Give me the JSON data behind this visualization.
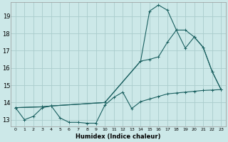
{
  "xlabel": "Humidex (Indice chaleur)",
  "background_color": "#cce8e8",
  "grid_color": "#aacccc",
  "line_color": "#1a6060",
  "xlim": [
    -0.5,
    23.5
  ],
  "ylim": [
    12.6,
    19.8
  ],
  "xticks": [
    0,
    1,
    2,
    3,
    4,
    5,
    6,
    7,
    8,
    9,
    10,
    11,
    12,
    13,
    14,
    15,
    16,
    17,
    18,
    19,
    20,
    21,
    22,
    23
  ],
  "yticks": [
    13,
    14,
    15,
    16,
    17,
    18,
    19
  ],
  "line1_x": [
    0,
    1,
    2,
    3,
    4,
    5,
    6,
    7,
    8,
    9,
    10,
    11,
    12,
    13,
    14,
    15,
    16,
    17,
    18,
    19,
    20,
    21,
    22,
    23
  ],
  "line1_y": [
    13.7,
    13.0,
    13.2,
    13.7,
    13.8,
    13.1,
    12.85,
    12.85,
    12.8,
    12.8,
    13.85,
    14.3,
    14.6,
    13.65,
    14.05,
    14.2,
    14.35,
    14.5,
    14.55,
    14.6,
    14.65,
    14.7,
    14.72,
    14.75
  ],
  "line2_x": [
    0,
    3,
    4,
    10,
    14,
    15,
    16,
    17,
    18,
    19,
    20,
    21,
    22,
    23
  ],
  "line2_y": [
    13.7,
    13.75,
    13.8,
    14.0,
    16.4,
    19.3,
    19.65,
    19.35,
    18.2,
    18.2,
    17.8,
    17.2,
    15.8,
    14.75
  ],
  "line3_x": [
    0,
    3,
    4,
    10,
    14,
    15,
    16,
    17,
    18,
    19,
    20,
    21,
    22,
    23
  ],
  "line3_y": [
    13.7,
    13.75,
    13.8,
    14.0,
    16.4,
    16.5,
    16.65,
    17.5,
    18.2,
    17.15,
    17.8,
    17.2,
    15.8,
    14.75
  ]
}
